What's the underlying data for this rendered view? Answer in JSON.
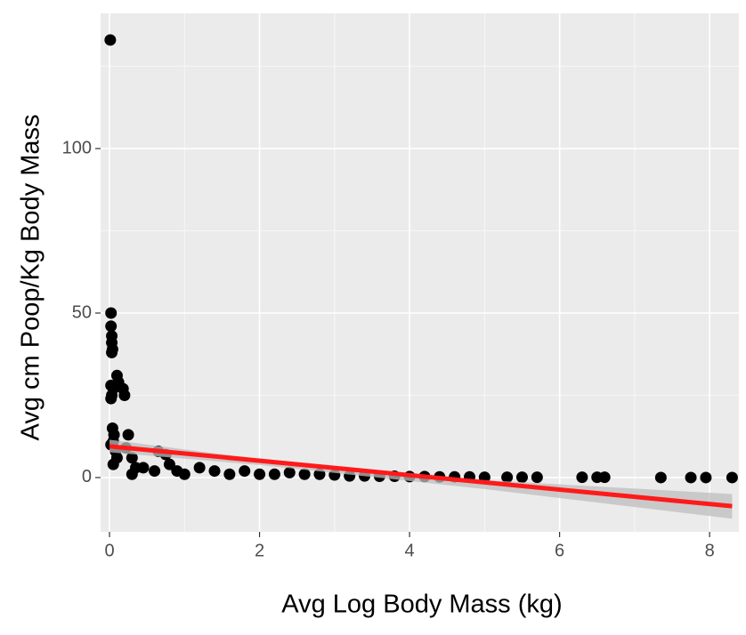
{
  "chart_data": {
    "type": "scatter",
    "x_label": "Avg Log Body Mass (kg)",
    "y_label": "Avg cm Poop/Kg Body Mass",
    "x": [
      0.01,
      0.02,
      0.02,
      0.03,
      0.03,
      0.04,
      0.03,
      0.02,
      0.05,
      0.03,
      0.02,
      0.04,
      0.06,
      0.05,
      0.02,
      0.08,
      0.1,
      0.05,
      0.1,
      0.12,
      0.18,
      0.2,
      0.25,
      0.22,
      0.3,
      0.35,
      0.3,
      0.45,
      0.6,
      0.65,
      0.75,
      0.8,
      0.9,
      1.0,
      1.2,
      1.4,
      1.6,
      1.8,
      2.0,
      2.2,
      2.4,
      2.6,
      2.8,
      3.0,
      3.2,
      3.4,
      3.6,
      3.8,
      4.0,
      4.2,
      4.4,
      4.6,
      4.8,
      5.0,
      5.3,
      5.5,
      5.7,
      6.3,
      6.5,
      6.6,
      7.35,
      7.75,
      7.95,
      8.3
    ],
    "values": [
      133,
      50,
      46,
      43,
      41,
      39,
      38,
      28,
      27,
      25,
      24,
      15,
      13,
      11,
      10,
      8,
      6,
      4,
      31,
      29,
      27,
      25,
      13,
      9,
      6,
      3,
      1,
      3,
      2,
      8,
      7,
      4,
      2,
      1,
      3,
      2,
      1,
      2,
      1,
      1,
      1.5,
      1,
      1,
      0.8,
      0.5,
      0.5,
      0.4,
      0.4,
      0.3,
      0.3,
      0.2,
      0.2,
      0.2,
      0.1,
      0.1,
      0.1,
      0.1,
      0.1,
      0.1,
      0.1,
      0,
      0,
      0,
      0
    ],
    "color": "#000000",
    "fit": {
      "x": [
        0,
        8.3
      ],
      "values": [
        9.5,
        -8.7
      ],
      "color": "#ff1a1a"
    },
    "fit_band": {
      "x": [
        0,
        2,
        3.5,
        5,
        8.3
      ],
      "upper": [
        11.5,
        5.6,
        2.0,
        -0.8,
        -5
      ],
      "lower": [
        7.7,
        3.8,
        0.2,
        -3.5,
        -12.5
      ],
      "color": "#bdbdbd"
    },
    "xlim": [
      -0.119,
      8.39
    ],
    "ylim": [
      -16.5,
      141.1
    ],
    "xticks": [
      0,
      2,
      4,
      6,
      8
    ],
    "yticks": [
      0,
      50,
      100
    ],
    "grid": true
  }
}
